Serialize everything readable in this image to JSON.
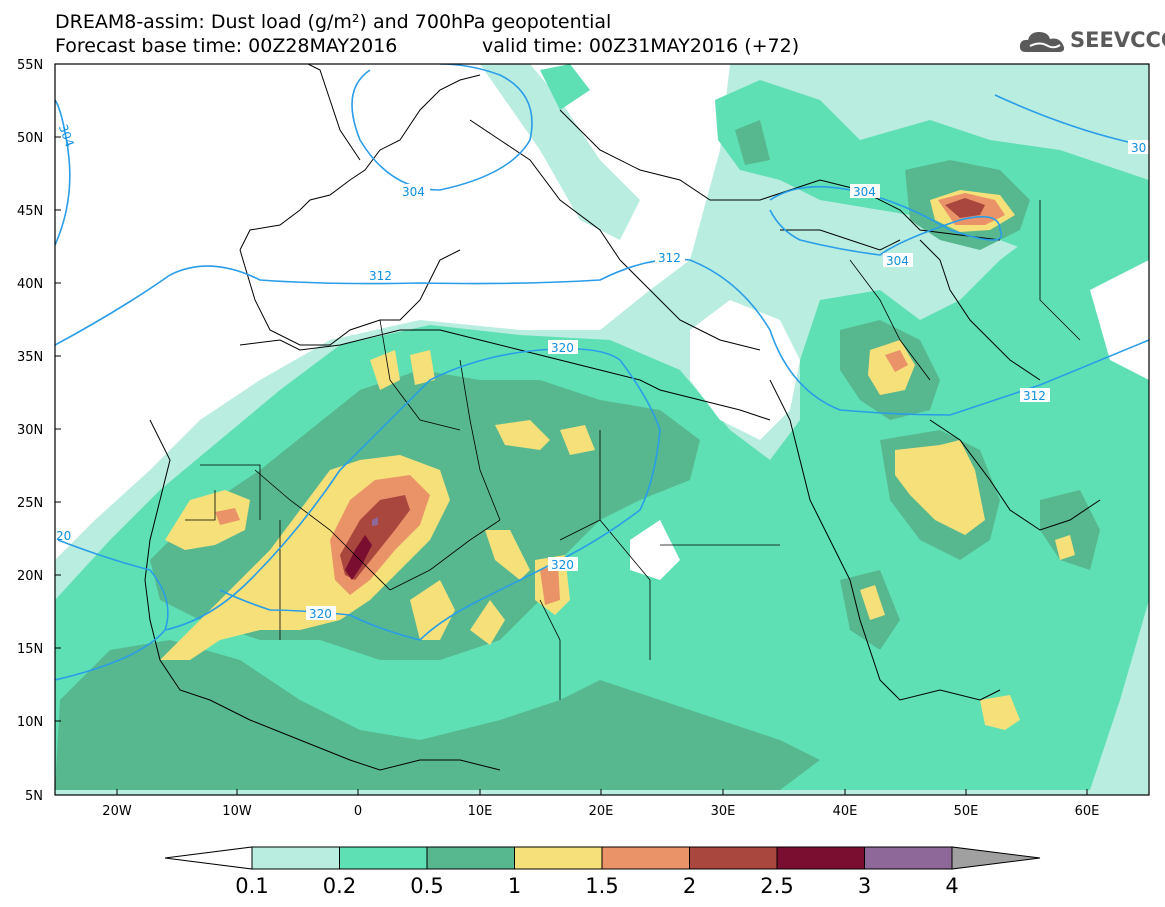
{
  "header": {
    "title_line1": "DREAM8-assim: Dust load (g/m²) and 700hPa geopotential",
    "base_time": "Forecast base time: 00Z28MAY2016",
    "valid_time": "valid time: 00Z31MAY2016 (+72)",
    "logo_text": "SEEVCCC",
    "logo_icon": "cloud-icon"
  },
  "axes": {
    "lat_labels": [
      "55N",
      "50N",
      "45N",
      "40N",
      "35N",
      "30N",
      "25N",
      "20N",
      "15N",
      "10N",
      "5N"
    ],
    "lon_labels": [
      "20W",
      "10W",
      "0",
      "10E",
      "20E",
      "30E",
      "40E",
      "50E",
      "60E"
    ]
  },
  "contour_labels": [
    "304",
    "304",
    "304",
    "30",
    "312",
    "312",
    "312",
    "320",
    "320",
    "320",
    "20"
  ],
  "colorbar": {
    "levels": [
      "0.1",
      "0.2",
      "0.5",
      "1",
      "1.5",
      "2",
      "2.5",
      "3",
      "4"
    ],
    "colors": [
      "#ffffff",
      "#b8ede0",
      "#5ee0b4",
      "#57b88f",
      "#f5e07a",
      "#ea9369",
      "#a9463e",
      "#7a0e30",
      "#8e6898",
      "#a0a0a0"
    ]
  }
}
